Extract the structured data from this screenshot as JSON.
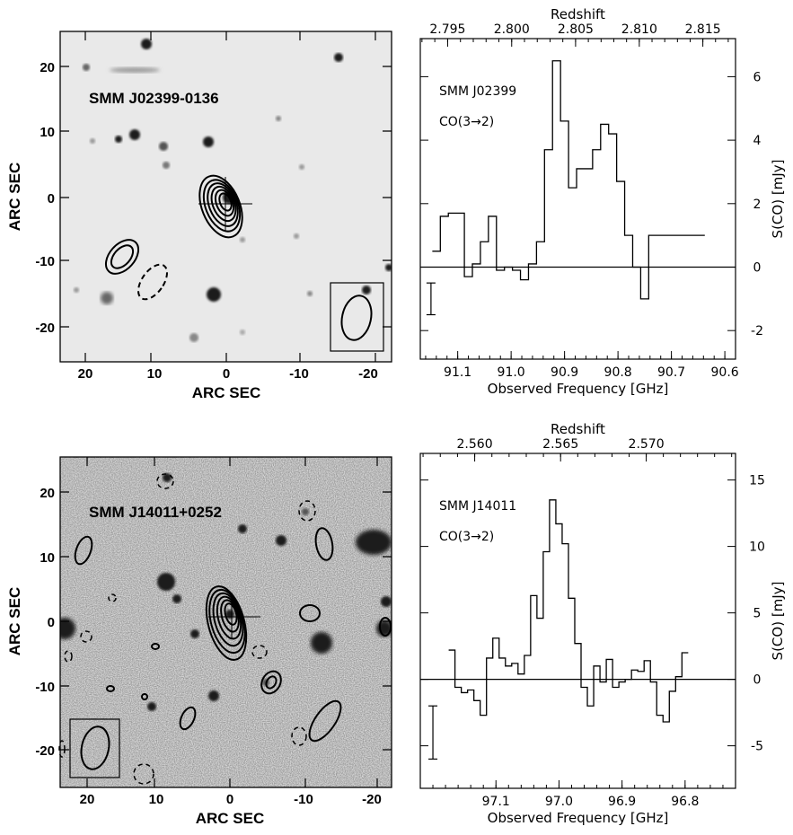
{
  "colors": {
    "frame": "#000000",
    "image_bg_top": "#e9e9e9",
    "image_bg_bottom": "#dcdcdc",
    "source_dark": "#1a1a1a"
  },
  "image_panels": [
    {
      "source_label": "SMM J02399-0136",
      "xlabel": "ARC SEC",
      "ylabel": "ARC SEC",
      "xticks": [
        "20",
        "10",
        "0",
        "-10",
        "-20"
      ],
      "yticks": [
        "20",
        "10",
        "0",
        "-10",
        "-20"
      ],
      "beam_box": "bottom-right"
    },
    {
      "source_label": "SMM J14011+0252",
      "xlabel": "ARC SEC",
      "ylabel": "ARC SEC",
      "xticks": [
        "20",
        "10",
        "0",
        "-10",
        "-20"
      ],
      "yticks": [
        "20",
        "10",
        "0",
        "-10",
        "-20"
      ],
      "beam_box": "bottom-left"
    }
  ],
  "chart_data": [
    {
      "type": "line",
      "step": true,
      "title": "",
      "annotations": [
        "SMM J02399",
        "CO(3→2)"
      ],
      "xlabel": "Observed Frequency [GHz]",
      "ylabel": "S(CO) [mJy]",
      "top_xlabel": "Redshift",
      "x_reversed": true,
      "xlim": [
        91.17,
        90.58
      ],
      "ylim": [
        -2.9,
        7.2
      ],
      "xticks": [
        91.1,
        91.0,
        90.9,
        90.8,
        90.7,
        90.6
      ],
      "xtick_labels": [
        "91.1",
        "91.0",
        "90.9",
        "90.8",
        "90.7",
        "90.6"
      ],
      "yticks": [
        -2,
        0,
        2,
        4,
        6
      ],
      "ytick_labels": [
        "-2",
        "0",
        "2",
        "4",
        "6"
      ],
      "top_ticks": [
        2.795,
        2.8,
        2.805,
        2.81,
        2.815
      ],
      "top_tick_labels": [
        "2.795",
        "2.800",
        "2.805",
        "2.810",
        "2.815"
      ],
      "freq_rest": 345.796,
      "zero_line": true,
      "error_bar": {
        "x": 91.15,
        "low": -1.5,
        "high": -0.5
      },
      "series": [
        {
          "x": [
            91.14,
            91.125,
            91.11,
            91.095,
            91.08,
            91.065,
            91.05,
            91.035,
            91.02,
            91.005,
            90.99,
            90.975,
            90.96,
            90.945,
            90.93,
            90.915,
            90.9,
            90.885,
            90.87,
            90.855,
            90.84,
            90.825,
            90.81,
            90.795,
            90.78,
            90.765,
            90.75,
            90.735,
            90.72,
            90.705,
            90.69,
            90.675,
            90.66,
            90.645
          ],
          "values": [
            0.5,
            1.6,
            1.7,
            1.7,
            -0.3,
            0.1,
            0.8,
            1.6,
            -0.1,
            0.0,
            -0.1,
            -0.4,
            0.1,
            0.8,
            3.7,
            6.5,
            4.6,
            2.5,
            3.1,
            3.1,
            3.7,
            4.5,
            4.2,
            2.7,
            1.0,
            0.0,
            -1.0,
            1.0,
            1.0,
            1.0,
            1.0,
            1.0,
            1.0,
            1.0
          ]
        }
      ]
    },
    {
      "type": "line",
      "step": true,
      "title": "",
      "annotations": [
        "SMM J14011",
        "CO(3→2)"
      ],
      "xlabel": "Observed Frequency [GHz]",
      "ylabel": "S(CO) [mJy]",
      "top_xlabel": "Redshift",
      "x_reversed": true,
      "xlim": [
        97.22,
        96.72
      ],
      "ylim": [
        -8.2,
        17.0
      ],
      "xticks": [
        97.1,
        97.0,
        96.9,
        96.8
      ],
      "xtick_labels": [
        "97.1",
        "97.0",
        "96.9",
        "96.8"
      ],
      "yticks": [
        -5,
        0,
        5,
        10,
        15
      ],
      "ytick_labels": [
        "-5",
        "0",
        "5",
        "10",
        "15"
      ],
      "top_ticks": [
        2.56,
        2.565,
        2.57
      ],
      "top_tick_labels": [
        "2.560",
        "2.565",
        "2.570"
      ],
      "freq_rest": 345.796,
      "zero_line": true,
      "error_bar": {
        "x": 97.2,
        "low": -6,
        "high": -2
      },
      "series": [
        {
          "x": [
            97.17,
            97.16,
            97.15,
            97.14,
            97.13,
            97.12,
            97.11,
            97.1,
            97.09,
            97.08,
            97.07,
            97.06,
            97.05,
            97.04,
            97.03,
            97.02,
            97.01,
            97.0,
            96.99,
            96.98,
            96.97,
            96.96,
            96.95,
            96.94,
            96.93,
            96.92,
            96.91,
            96.9,
            96.89,
            96.88,
            96.87,
            96.86,
            96.85,
            96.84,
            96.83,
            96.82,
            96.81,
            96.8
          ],
          "values": [
            2.2,
            -0.6,
            -1.0,
            -0.8,
            -1.6,
            -2.7,
            1.6,
            3.1,
            1.6,
            1.0,
            1.2,
            0.4,
            1.8,
            6.3,
            4.6,
            9.6,
            13.5,
            11.7,
            10.2,
            6.1,
            2.7,
            -0.6,
            -2.0,
            1.0,
            -0.2,
            1.5,
            -0.6,
            -0.2,
            0.0,
            0.7,
            0.6,
            1.4,
            -0.2,
            -2.7,
            -3.2,
            -0.9,
            0.2,
            2.0
          ]
        }
      ]
    }
  ]
}
